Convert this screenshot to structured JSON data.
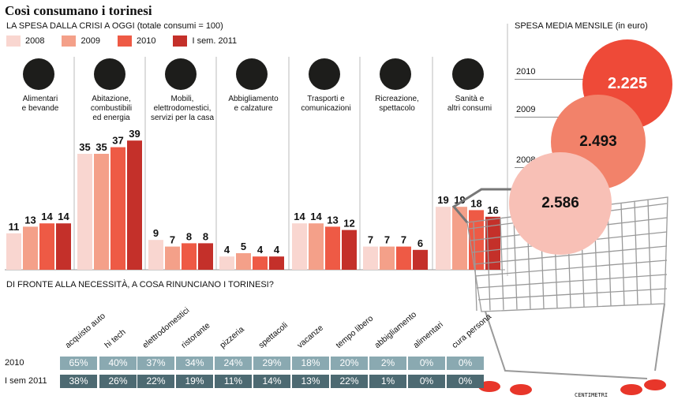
{
  "header": {
    "title": "Così consumano i torinesi",
    "subtitle": "LA SPESA DALLA CRISI A OGGI (totale consumi = 100)"
  },
  "colors": {
    "2008": "#f9d6d0",
    "2009": "#f4a089",
    "2010": "#ee5a45",
    "2011": "#c4302a",
    "row2010": "#8aa9b1",
    "row2011": "#4d6a72"
  },
  "chart_data": [
    {
      "type": "bar",
      "title": "LA SPESA DALLA CRISI A OGGI (totale consumi = 100)",
      "categories": [
        "Alimentari e bevande",
        "Abitazione, combustibili ed energia",
        "Mobili, elettrodomestici, servizi per la casa",
        "Abbigliamento e calzature",
        "Trasporti e comunicazioni",
        "Ricreazione, spettacolo",
        "Sanità e altri consumi"
      ],
      "series": [
        {
          "name": "2008",
          "values": [
            11,
            35,
            9,
            4,
            14,
            7,
            19
          ]
        },
        {
          "name": "2009",
          "values": [
            13,
            35,
            7,
            5,
            14,
            7,
            19
          ]
        },
        {
          "name": "2010",
          "values": [
            14,
            37,
            8,
            4,
            13,
            7,
            18
          ]
        },
        {
          "name": "I sem. 2011",
          "values": [
            14,
            39,
            8,
            4,
            12,
            6,
            16
          ]
        }
      ],
      "legend": "top-left"
    },
    {
      "type": "table",
      "title": "DI FRONTE ALLA NECESSITÀ, A COSA RINUNCIANO I TORINESI?",
      "columns": [
        "acquisto auto",
        "hi tech",
        "elettrodomestici",
        "ristorante",
        "pizzeria",
        "spettacoli",
        "vacanze",
        "tempo libero",
        "abbigliamento",
        "alimentari",
        "cura persona"
      ],
      "rows": [
        {
          "label": "2010",
          "values": [
            "65%",
            "40%",
            "37%",
            "34%",
            "24%",
            "29%",
            "18%",
            "20%",
            "2%",
            "0%",
            "0%"
          ]
        },
        {
          "label": "I sem 2011",
          "values": [
            "38%",
            "26%",
            "22%",
            "19%",
            "11%",
            "14%",
            "13%",
            "22%",
            "1%",
            "0%",
            "0%"
          ]
        }
      ]
    },
    {
      "type": "bubble",
      "title": "SPESA MEDIA MENSILE (in euro)",
      "items": [
        {
          "year": "2010",
          "value": "2.225",
          "numeric": 2225
        },
        {
          "year": "2009",
          "value": "2.493",
          "numeric": 2493
        },
        {
          "year": "2008",
          "value": "2.586",
          "numeric": 2586
        }
      ]
    }
  ],
  "labels": {
    "cat": [
      [
        "Alimentari",
        "e bevande"
      ],
      [
        "Abitazione,",
        "combustibili",
        "ed energia"
      ],
      [
        "Mobili,",
        "elettrodomestici,",
        "servizi per la casa"
      ],
      [
        "Abbigliamento",
        "e calzature"
      ],
      [
        "Trasporti e",
        "comunicazioni"
      ],
      [
        "Ricreazione,",
        "spettacolo"
      ],
      [
        "Sanità e",
        "altri consumi"
      ]
    ]
  },
  "icons": [
    "bottle-icon",
    "plug-icon",
    "washing-machine-icon",
    "shoe-icon",
    "bus-icon",
    "theater-masks-icon",
    "medical-cross-icon"
  ],
  "credit": "CENTIMETRI"
}
